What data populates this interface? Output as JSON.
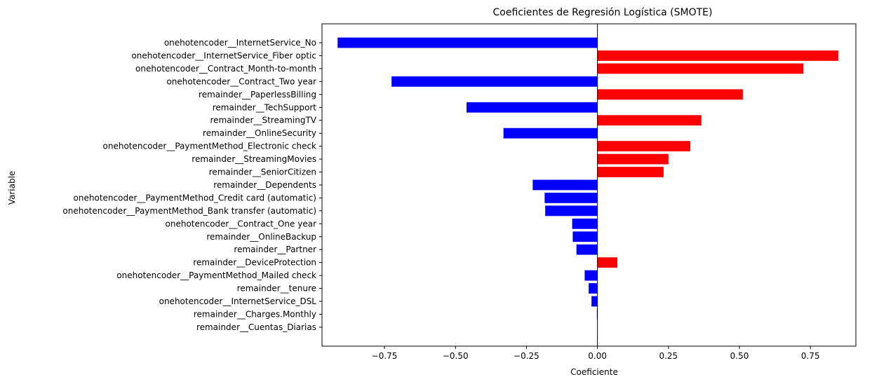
{
  "chart_data": {
    "type": "bar",
    "orientation": "horizontal",
    "title": "Coeficientes de Regresión Logística (SMOTE)",
    "xlabel": "Coeficiente",
    "ylabel": "Variable",
    "xlim": [
      -0.97,
      0.91
    ],
    "xticks": [
      -0.75,
      -0.5,
      -0.25,
      0.0,
      0.25,
      0.5,
      0.75
    ],
    "xtick_labels": [
      "−0.75",
      "−0.50",
      "−0.25",
      "0.00",
      "0.25",
      "0.50",
      "0.75"
    ],
    "grid": false,
    "zero_line": true,
    "colors": {
      "positive": "#ff0000",
      "negative": "#0000ff"
    },
    "categories": [
      "onehotencoder__InternetService_No",
      "onehotencoder__InternetService_Fiber optic",
      "onehotencoder__Contract_Month-to-month",
      "onehotencoder__Contract_Two year",
      "remainder__PaperlessBilling",
      "remainder__TechSupport",
      "remainder__StreamingTV",
      "remainder__OnlineSecurity",
      "onehotencoder__PaymentMethod_Electronic check",
      "remainder__StreamingMovies",
      "remainder__SeniorCitizen",
      "remainder__Dependents",
      "onehotencoder__PaymentMethod_Credit card (automatic)",
      "onehotencoder__PaymentMethod_Bank transfer (automatic)",
      "onehotencoder__Contract_One year",
      "remainder__OnlineBackup",
      "remainder__Partner",
      "remainder__DeviceProtection",
      "onehotencoder__PaymentMethod_Mailed check",
      "remainder__tenure",
      "onehotencoder__InternetService_DSL",
      "remainder__Charges.Monthly",
      "remainder__Cuentas_Diarias"
    ],
    "values": [
      -0.915,
      0.848,
      0.725,
      -0.725,
      0.512,
      -0.461,
      0.366,
      -0.331,
      0.327,
      0.25,
      0.233,
      -0.228,
      -0.186,
      -0.184,
      -0.089,
      -0.087,
      -0.074,
      0.07,
      -0.045,
      -0.031,
      -0.021,
      -0.002,
      0.0
    ]
  }
}
